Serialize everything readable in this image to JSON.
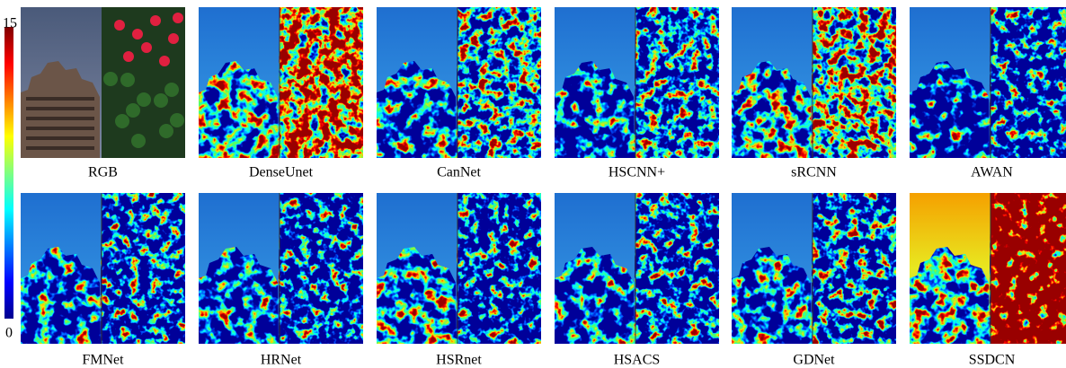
{
  "colorbar": {
    "max_label": "15",
    "min_label": "0"
  },
  "panels": [
    {
      "label": "RGB"
    },
    {
      "label": "DenseUnet"
    },
    {
      "label": "CanNet"
    },
    {
      "label": "HSCNN+"
    },
    {
      "label": "sRCNN"
    },
    {
      "label": "AWAN"
    },
    {
      "label": "FMNet"
    },
    {
      "label": "HRNet"
    },
    {
      "label": "HSRnet"
    },
    {
      "label": "HSACS"
    },
    {
      "label": "GDNet"
    },
    {
      "label": "SSDCN"
    }
  ]
}
